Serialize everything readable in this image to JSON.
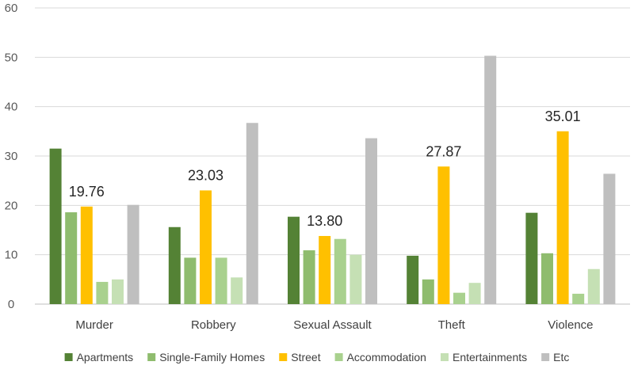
{
  "chart_data": {
    "type": "bar",
    "title": "",
    "xlabel": "",
    "ylabel": "",
    "ylim": [
      0,
      60
    ],
    "yticks": [
      0,
      10,
      20,
      30,
      40,
      50,
      60
    ],
    "grid": true,
    "legend_position": "bottom",
    "categories": [
      "Murder",
      "Robbery",
      "Sexual Assault",
      "Theft",
      "Violence"
    ],
    "series": [
      {
        "name": "Apartments",
        "color": "#548235",
        "values": [
          31.5,
          15.6,
          17.7,
          9.8,
          18.5
        ]
      },
      {
        "name": "Single-Family Homes",
        "color": "#8fbc6e",
        "values": [
          18.6,
          9.4,
          10.9,
          5.0,
          10.3
        ]
      },
      {
        "name": "Street",
        "color": "#ffc000",
        "values": [
          19.76,
          23.03,
          13.8,
          27.87,
          35.01
        ]
      },
      {
        "name": "Accommodation",
        "color": "#a9d18e",
        "values": [
          4.5,
          9.4,
          13.2,
          2.3,
          2.1
        ]
      },
      {
        "name": "Entertainments",
        "color": "#c5e0b4",
        "values": [
          5.0,
          5.4,
          10.0,
          4.3,
          7.1
        ]
      },
      {
        "name": "Etc",
        "color": "#bfbfbf",
        "values": [
          20.1,
          36.7,
          33.6,
          50.3,
          26.4
        ]
      }
    ],
    "data_labels": {
      "series": "Street",
      "texts": [
        "19.76",
        "23.03",
        "13.80",
        "27.87",
        "35.01"
      ]
    }
  }
}
